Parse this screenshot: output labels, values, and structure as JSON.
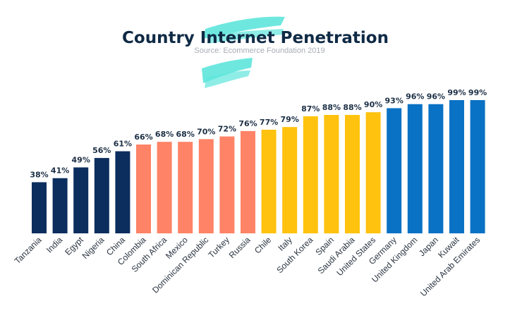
{
  "chart_data": {
    "type": "bar",
    "title": "Country Internet Penetration",
    "subtitle": "Source: Ecommerce Foundation 2019",
    "categories": [
      "Tanzania",
      "India",
      "Egypt",
      "Nigeria",
      "China",
      "Colombia",
      "South Africa",
      "Mexico",
      "Dominican Republic",
      "Turkey",
      "Russia",
      "Chile",
      "Italy",
      "South Korea",
      "Spain",
      "Saudi Arabia",
      "United States",
      "Germany",
      "United Kingdom",
      "Japan",
      "Kuwait",
      "United Arab Emirates"
    ],
    "values": [
      38,
      41,
      49,
      56,
      61,
      66,
      68,
      68,
      70,
      72,
      76,
      77,
      79,
      87,
      88,
      88,
      90,
      93,
      96,
      96,
      99,
      99
    ],
    "value_labels": [
      "38%",
      "41%",
      "49%",
      "56%",
      "61%",
      "66%",
      "68%",
      "68%",
      "70%",
      "72%",
      "76%",
      "77%",
      "79%",
      "87%",
      "88%",
      "88%",
      "90%",
      "93%",
      "96%",
      "96%",
      "99%",
      "99%"
    ],
    "group_colors": [
      "#0b2e5e",
      "#0b2e5e",
      "#0b2e5e",
      "#0b2e5e",
      "#0b2e5e",
      "#ff8366",
      "#ff8366",
      "#ff8366",
      "#ff8366",
      "#ff8366",
      "#ff8366",
      "#ffc20e",
      "#ffc20e",
      "#ffc20e",
      "#ffc20e",
      "#ffc20e",
      "#ffc20e",
      "#0a72c5",
      "#0a72c5",
      "#0a72c5",
      "#0a72c5",
      "#0a72c5"
    ],
    "accent_color": "#5ee6dc",
    "ylim": [
      0,
      100
    ],
    "grid": false,
    "legend": "none"
  }
}
